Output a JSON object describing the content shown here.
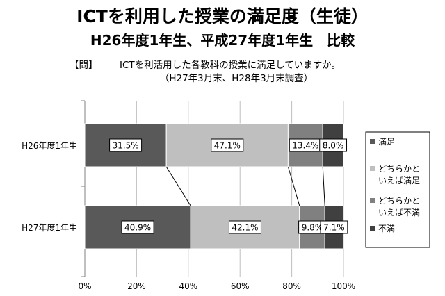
{
  "title": "ICTを利用した授業の満足度（生徒）",
  "subtitle": "H26年度1年生、平成27年度1年生　比較",
  "question_label": "【問】",
  "question_text": "ICTを利活用した各教科の授業に満足していますか。",
  "survey_period": "（H27年3月末、H28年3月末調査）",
  "colors": {
    "満足": "#595959",
    "どちらかといえば満足": "#bfbfbf",
    "どちらかといえば不満": "#808080",
    "不満": "#404040"
  },
  "chart_data": {
    "type": "bar",
    "orientation": "horizontal",
    "stacked": "100%",
    "categories": [
      "H26年度1年生",
      "H27年度1年生"
    ],
    "series": [
      {
        "name": "満足",
        "values": [
          31.5,
          40.9
        ]
      },
      {
        "name": "どちらかといえば満足",
        "values": [
          47.1,
          42.1
        ]
      },
      {
        "name": "どちらかといえば不満",
        "values": [
          13.4,
          9.8
        ]
      },
      {
        "name": "不満",
        "values": [
          8.0,
          7.1
        ]
      }
    ],
    "data_labels": [
      [
        "31.5%",
        "47.1%",
        "13.4%",
        "8.0%"
      ],
      [
        "40.9%",
        "42.1%",
        "9.8%",
        "7.1%"
      ]
    ],
    "legend_lines": [
      [
        "満足"
      ],
      [
        "どちらかと",
        "いえば満足"
      ],
      [
        "どちらかと",
        "いえば不満"
      ],
      [
        "不満"
      ]
    ],
    "xlim": [
      0,
      100
    ],
    "x_ticks": [
      "0%",
      "20%",
      "40%",
      "60%",
      "80%",
      "100%"
    ],
    "grid": true,
    "series_lines": true,
    "legend_position": "right"
  }
}
